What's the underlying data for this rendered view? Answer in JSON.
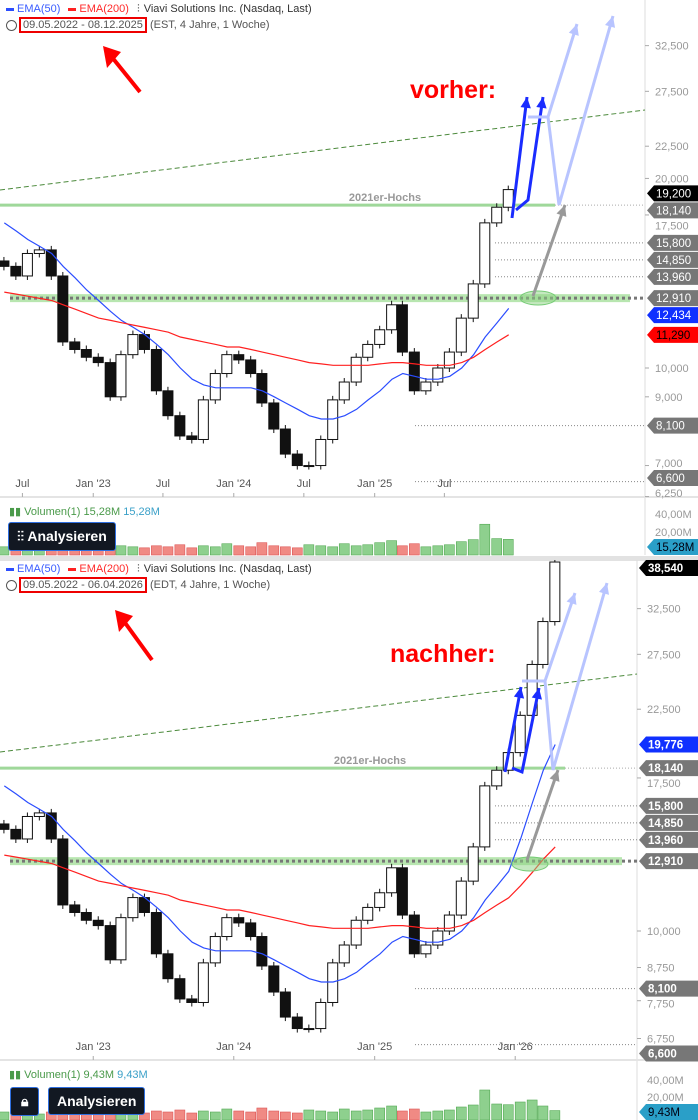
{
  "colors": {
    "ema50": "#2b4dff",
    "ema200": "#ff2020",
    "up": "#ffffff",
    "down": "#111111",
    "vol_up": "#8ed08e",
    "vol_down": "#f08a84",
    "grey_tag": "#777777",
    "band": "#b8e6b0",
    "trend": "#4c8a3c"
  },
  "panels": [
    {
      "legend": {
        "ema50": "EMA(50)",
        "ema200": "EMA(200)",
        "title": "Viavi Solutions Inc. (Nasdaq, Last)",
        "date_range": "09.05.2022 - 08.12.2025",
        "info": "(EST, 4 Jahre, 1 Woche)"
      },
      "annotation": "vorher:",
      "level_label": "2021er-Hochs",
      "volume_legend": {
        "label": "Volumen(1)",
        "value1": "15,28M",
        "value2": "15,28M"
      },
      "analyse_button": "Analysieren",
      "x_labels": [
        {
          "date": "2022-07",
          "t": "Jul"
        },
        {
          "date": "2023-01",
          "t": "Jan '23"
        },
        {
          "date": "2023-07",
          "t": "Jul"
        },
        {
          "date": "2024-01",
          "t": "Jan '24"
        },
        {
          "date": "2024-07",
          "t": "Jul"
        },
        {
          "date": "2025-01",
          "t": "Jan '25"
        },
        {
          "date": "2025-07",
          "t": "Jul"
        }
      ],
      "y_ticks": [
        {
          "v": 32.5,
          "t": "32,500"
        },
        {
          "v": 27.5,
          "t": "27,500"
        },
        {
          "v": 22.5,
          "t": "22,500"
        },
        {
          "v": 20,
          "t": "20,000"
        },
        {
          "v": 17.5,
          "t": "17,500"
        },
        {
          "v": 10,
          "t": "10,000"
        },
        {
          "v": 9,
          "t": "9,000"
        },
        {
          "v": 7,
          "t": "7,000"
        },
        {
          "v": 6.25,
          "t": "6,250"
        }
      ],
      "tags": [
        {
          "v": 19.2,
          "t": "19,200",
          "c": "#000000"
        },
        {
          "v": 18.14,
          "t": "18,140",
          "c": "#777777"
        },
        {
          "v": 15.8,
          "t": "15,800",
          "c": "#777777"
        },
        {
          "v": 14.85,
          "t": "14,850",
          "c": "#777777"
        },
        {
          "v": 13.96,
          "t": "13,960",
          "c": "#777777"
        },
        {
          "v": 12.434,
          "t": "12,434",
          "c": "#1030ff"
        },
        {
          "v": 12.91,
          "t": "12,910",
          "c": "#777777"
        },
        {
          "v": 11.29,
          "t": "11,290",
          "c": "#ff0000"
        },
        {
          "v": 8.1,
          "t": "8,100",
          "c": "#777777"
        },
        {
          "v": 6.6,
          "t": "6,600",
          "c": "#777777"
        }
      ],
      "vol_ticks": [
        {
          "v": 40,
          "t": "40,00M"
        },
        {
          "v": 20,
          "t": "20,00M"
        }
      ],
      "vol_tag": "15,28M",
      "last_index": 43
    },
    {
      "legend": {
        "ema50": "EMA(50)",
        "ema200": "EMA(200)",
        "title": "Viavi Solutions Inc. (Nasdaq, Last)",
        "date_range": "09.05.2022 - 06.04.2026",
        "info": "(EDT, 4 Jahre, 1 Woche)"
      },
      "annotation": "nachher:",
      "level_label": "2021er-Hochs",
      "volume_legend": {
        "label": "Volumen(1)",
        "value1": "9,43M",
        "value2": "9,43M"
      },
      "analyse_button": "Analysieren",
      "x_labels": [
        {
          "date": "2023-01",
          "t": "Jan '23"
        },
        {
          "date": "2024-01",
          "t": "Jan '24"
        },
        {
          "date": "2025-01",
          "t": "Jan '25"
        },
        {
          "date": "2026-01",
          "t": "Jan '26"
        }
      ],
      "y_ticks": [
        {
          "v": 32.5,
          "t": "32,500"
        },
        {
          "v": 27.5,
          "t": "27,500"
        },
        {
          "v": 22.5,
          "t": "22,500"
        },
        {
          "v": 17.5,
          "t": "17,500"
        },
        {
          "v": 10,
          "t": "10,000"
        },
        {
          "v": 8.75,
          "t": "8,750"
        },
        {
          "v": 7.75,
          "t": "7,750"
        },
        {
          "v": 6.75,
          "t": "6,750"
        }
      ],
      "tags": [
        {
          "v": 38.54,
          "t": "38,540",
          "c": "#000000"
        },
        {
          "v": 19.776,
          "t": "19,776",
          "c": "#1030ff"
        },
        {
          "v": 18.14,
          "t": "18,140",
          "c": "#777777"
        },
        {
          "v": 15.8,
          "t": "15,800",
          "c": "#777777"
        },
        {
          "v": 14.85,
          "t": "14,850",
          "c": "#777777"
        },
        {
          "v": 13.96,
          "t": "13,960",
          "c": "#777777"
        },
        {
          "v": 12.91,
          "t": "12,910",
          "c": "#777777"
        },
        {
          "v": 8.1,
          "t": "8,100",
          "c": "#777777"
        },
        {
          "v": 6.6,
          "t": "6,600",
          "c": "#777777"
        }
      ],
      "vol_ticks": [
        {
          "v": 40,
          "t": "40,00M"
        },
        {
          "v": 20,
          "t": "20,00M"
        }
      ],
      "vol_tag": "9,43M",
      "last_index": 47
    }
  ],
  "chart_data": {
    "type": "candlestick",
    "title": "Viavi Solutions Inc. (Nasdaq, Last)",
    "y_scale": "log",
    "levels": {
      "2021er-Hochs": 18.14,
      "support_band": 12.91,
      "dotted": [
        15.8,
        14.85,
        13.96,
        8.1,
        6.6
      ]
    },
    "dates": [
      "2022-05",
      "2022-06",
      "2022-07",
      "2022-08",
      "2022-09",
      "2022-10",
      "2022-11",
      "2022-12",
      "2023-01",
      "2023-02",
      "2023-03",
      "2023-04",
      "2023-05",
      "2023-06",
      "2023-07",
      "2023-08",
      "2023-09",
      "2023-10",
      "2023-11",
      "2023-12",
      "2024-01",
      "2024-02",
      "2024-03",
      "2024-04",
      "2024-05",
      "2024-06",
      "2024-07",
      "2024-08",
      "2024-09",
      "2024-10",
      "2024-11",
      "2024-12",
      "2025-01",
      "2025-02",
      "2025-03",
      "2025-04",
      "2025-05",
      "2025-06",
      "2025-07",
      "2025-08",
      "2025-09",
      "2025-10",
      "2025-11",
      "2025-12",
      "2026-01",
      "2026-02",
      "2026-03",
      "2026-04"
    ],
    "close": [
      14.5,
      14.0,
      15.2,
      15.4,
      14.0,
      11.0,
      10.7,
      10.4,
      10.2,
      9.0,
      10.5,
      11.3,
      10.7,
      9.2,
      8.4,
      7.8,
      7.7,
      8.9,
      9.8,
      10.5,
      10.3,
      9.8,
      8.8,
      8.0,
      7.3,
      7.0,
      7.0,
      7.7,
      8.9,
      9.5,
      10.4,
      10.9,
      11.5,
      12.6,
      10.6,
      9.2,
      9.5,
      10.0,
      10.6,
      12.0,
      13.6,
      17.0,
      18.0,
      19.2,
      22.0,
      26.5,
      31.0,
      38.54
    ],
    "ema50": [
      17.0,
      16.5,
      16.0,
      15.6,
      15.2,
      14.5,
      13.9,
      13.3,
      12.8,
      12.3,
      11.9,
      11.6,
      11.3,
      10.9,
      10.5,
      10.0,
      9.6,
      9.4,
      9.3,
      9.3,
      9.3,
      9.3,
      9.2,
      9.0,
      8.8,
      8.6,
      8.4,
      8.3,
      8.3,
      8.4,
      8.6,
      8.9,
      9.2,
      9.6,
      9.8,
      9.7,
      9.6,
      9.6,
      9.7,
      10.0,
      10.5,
      11.2,
      11.8,
      12.434,
      14.0,
      16.0,
      18.0,
      19.776
    ],
    "ema200": [
      13.2,
      13.1,
      13.0,
      12.9,
      12.8,
      12.6,
      12.4,
      12.2,
      12.0,
      11.9,
      11.8,
      11.7,
      11.6,
      11.5,
      11.4,
      11.2,
      11.1,
      11.0,
      10.9,
      10.8,
      10.8,
      10.7,
      10.6,
      10.5,
      10.4,
      10.3,
      10.2,
      10.15,
      10.1,
      10.1,
      10.1,
      10.1,
      10.15,
      10.2,
      10.2,
      10.15,
      10.1,
      10.1,
      10.1,
      10.2,
      10.4,
      10.7,
      11.0,
      11.29,
      11.8,
      12.4,
      13.0,
      13.6
    ],
    "volume_m": [
      8,
      7,
      9,
      6,
      8,
      14,
      9,
      7,
      8,
      10,
      9,
      8,
      7,
      9,
      8,
      10,
      7,
      9,
      8,
      11,
      9,
      8,
      12,
      9,
      8,
      7,
      10,
      9,
      8,
      11,
      9,
      10,
      12,
      14,
      9,
      11,
      8,
      9,
      10,
      13,
      15,
      30,
      16,
      15.28,
      18,
      20,
      14,
      9.43
    ]
  }
}
